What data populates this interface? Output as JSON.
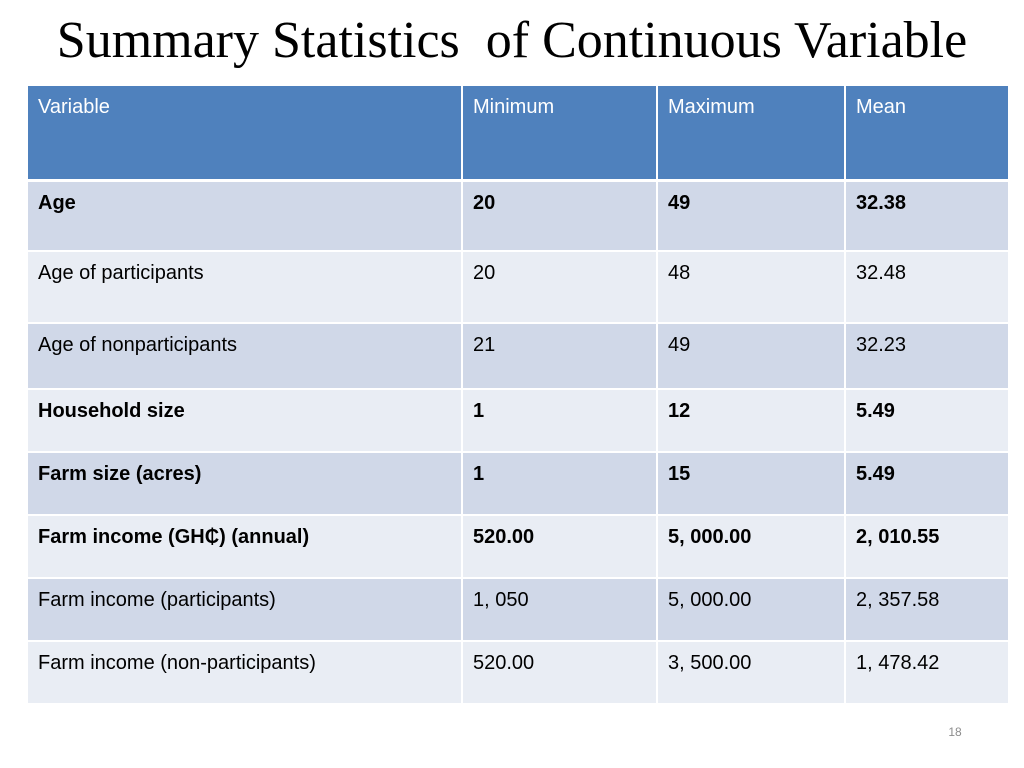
{
  "title": "Summary Statistics  of Continuous Variable",
  "table": {
    "headers": [
      "Variable",
      "Minimum",
      "Maximum",
      "Mean"
    ],
    "rows": [
      {
        "cells": [
          "Age",
          "20",
          "49",
          "32.38"
        ],
        "bold": true
      },
      {
        "cells": [
          "Age of participants",
          "20",
          "48",
          "32.48"
        ],
        "bold": false
      },
      {
        "cells": [
          "Age of nonparticipants",
          "21",
          "49",
          "32.23"
        ],
        "bold": false
      },
      {
        "cells": [
          "Household size",
          "1",
          "12",
          "5.49"
        ],
        "bold": true
      },
      {
        "cells": [
          "Farm size (acres)",
          "1",
          "15",
          "5.49"
        ],
        "bold": true
      },
      {
        "cells": [
          "Farm income  (GH₵) (annual)",
          "520.00",
          "5, 000.00",
          "2, 010.55"
        ],
        "bold": true
      },
      {
        "cells": [
          "Farm income (participants)",
          "1, 050",
          "5, 000.00",
          "2, 357.58"
        ],
        "bold": false
      },
      {
        "cells": [
          "Farm income (non-participants)",
          "520.00",
          "3, 500.00",
          "1, 478.42"
        ],
        "bold": false
      }
    ]
  },
  "page_number": "18",
  "colors": {
    "header_bg": "#4f81bd",
    "row_odd_bg": "#d0d8e8",
    "row_even_bg": "#e9edf4"
  }
}
